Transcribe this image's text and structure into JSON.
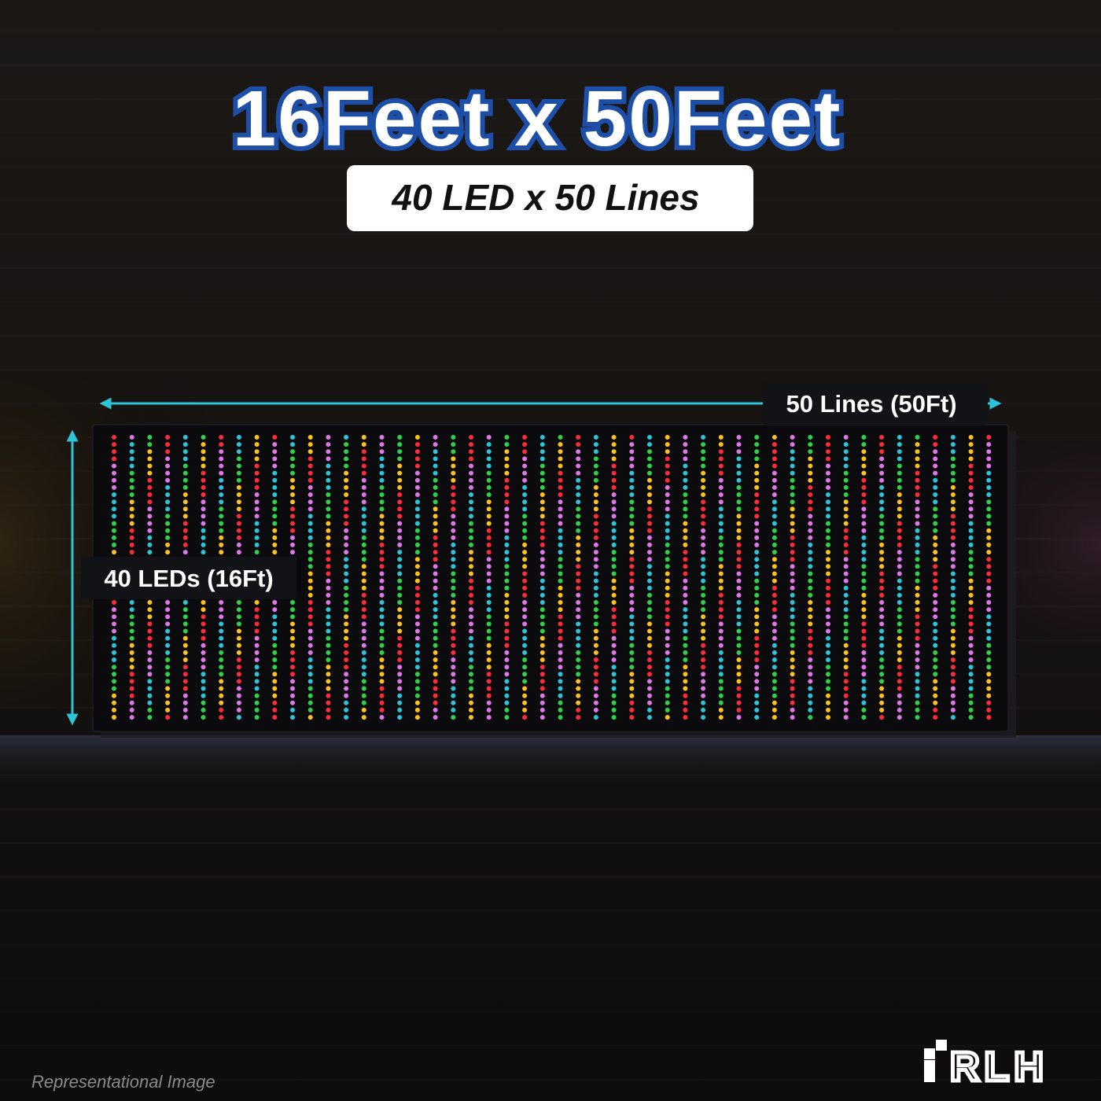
{
  "header": {
    "title": "16Feet x 50Feet",
    "subtitle": "40 LED x 50 Lines"
  },
  "dimensions": {
    "width_label": "50 Lines (50Ft)",
    "height_label": "40 LEDs (16Ft)"
  },
  "brand": {
    "logo": "RLH"
  },
  "footer": {
    "note": "Representational Image"
  }
}
